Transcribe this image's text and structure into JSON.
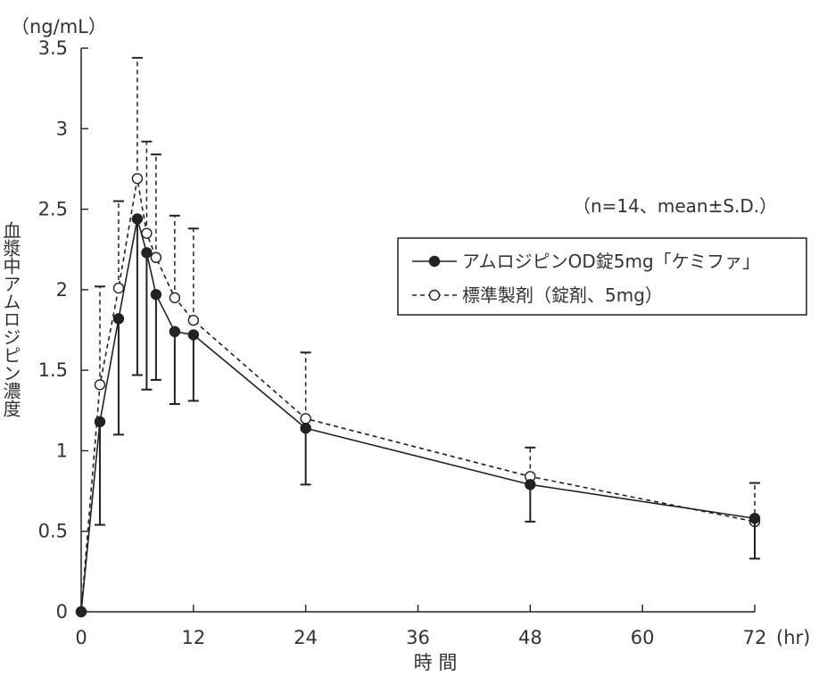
{
  "chart_data": {
    "type": "line",
    "y_unit": "（ng/mL）",
    "x_unit": "(hr)",
    "xlabel": "時 間",
    "ylabel": "血漿中アムロジピン濃度",
    "annotation": "（n=14、mean±S.D.）",
    "xlim": [
      0,
      72
    ],
    "ylim": [
      0,
      3.5
    ],
    "x_ticks": [
      0,
      12,
      24,
      36,
      48,
      60,
      72
    ],
    "x_tick_labels": [
      "0",
      "12",
      "24",
      "36",
      "48",
      "60",
      "72"
    ],
    "y_ticks": [
      0,
      0.5,
      1,
      1.5,
      2,
      2.5,
      3,
      3.5
    ],
    "y_tick_labels": [
      "0",
      "0.5",
      "1",
      "1.5",
      "2",
      "2.5",
      "3",
      "3.5"
    ],
    "grid": false,
    "legend_position": "upper-right",
    "series": [
      {
        "name": "アムロジピンOD錠5mg「ケミファ」",
        "marker": "filled-circle",
        "line_style": "solid",
        "color": "#222222",
        "x": [
          0,
          2,
          4,
          6,
          7,
          8,
          10,
          12,
          24,
          48,
          72
        ],
        "y": [
          0,
          1.18,
          1.82,
          2.44,
          2.23,
          1.97,
          1.74,
          1.72,
          1.14,
          0.79,
          0.58
        ],
        "sd": [
          0,
          0.64,
          0.72,
          0.97,
          0.85,
          0.53,
          0.45,
          0.41,
          0.35,
          0.23,
          0.25
        ]
      },
      {
        "name": "標準製剤（錠剤、5mg）",
        "marker": "open-circle",
        "line_style": "dashed",
        "color": "#222222",
        "x": [
          0,
          2,
          4,
          6,
          7,
          8,
          10,
          12,
          24,
          48,
          72
        ],
        "y": [
          0,
          1.41,
          2.01,
          2.69,
          2.35,
          2.2,
          1.95,
          1.81,
          1.2,
          0.84,
          0.56
        ],
        "sd": [
          0,
          0.61,
          0.54,
          0.75,
          0.57,
          0.64,
          0.51,
          0.57,
          0.41,
          0.18,
          0.24
        ]
      }
    ]
  }
}
